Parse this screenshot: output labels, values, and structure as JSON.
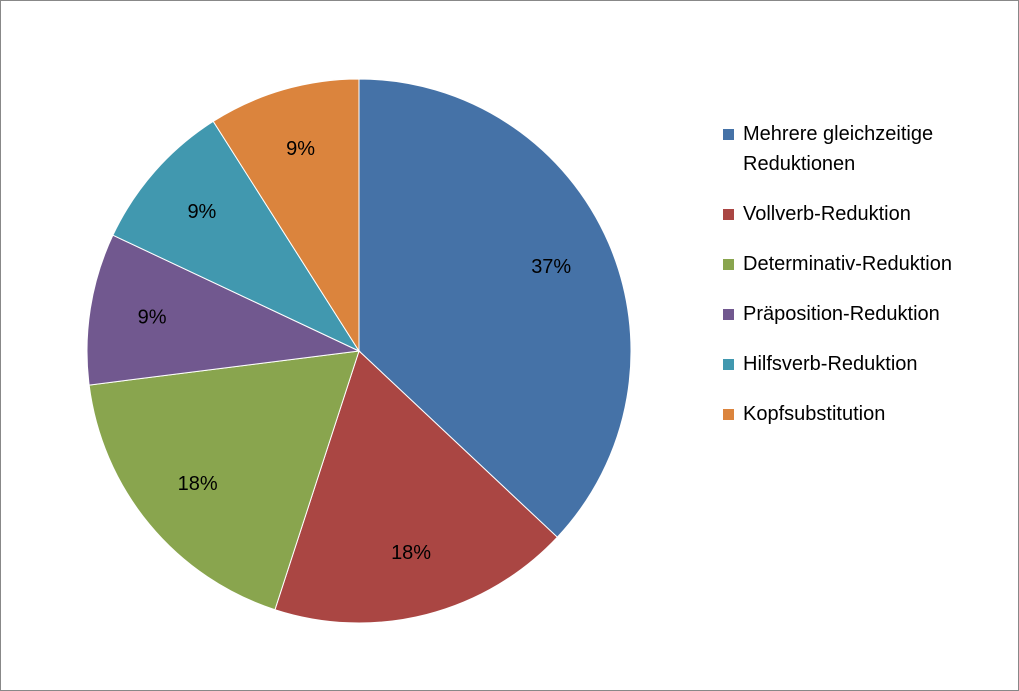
{
  "chart_data": {
    "type": "pie",
    "categories": [
      "Mehrere gleichzeitige Reduktionen",
      "Vollverb-Reduktion",
      "Determinativ-Reduktion",
      "Präposition-Reduktion",
      "Hilfsverb-Reduktion",
      "Kopfsubstitution"
    ],
    "values": [
      37,
      18,
      18,
      9,
      9,
      9
    ],
    "value_labels": [
      "37%",
      "18%",
      "18%",
      "9%",
      "9%",
      "9%"
    ],
    "colors": [
      "#4572a7",
      "#aa4643",
      "#89a54e",
      "#71588f",
      "#4198af",
      "#db843d"
    ],
    "legend": "right"
  }
}
